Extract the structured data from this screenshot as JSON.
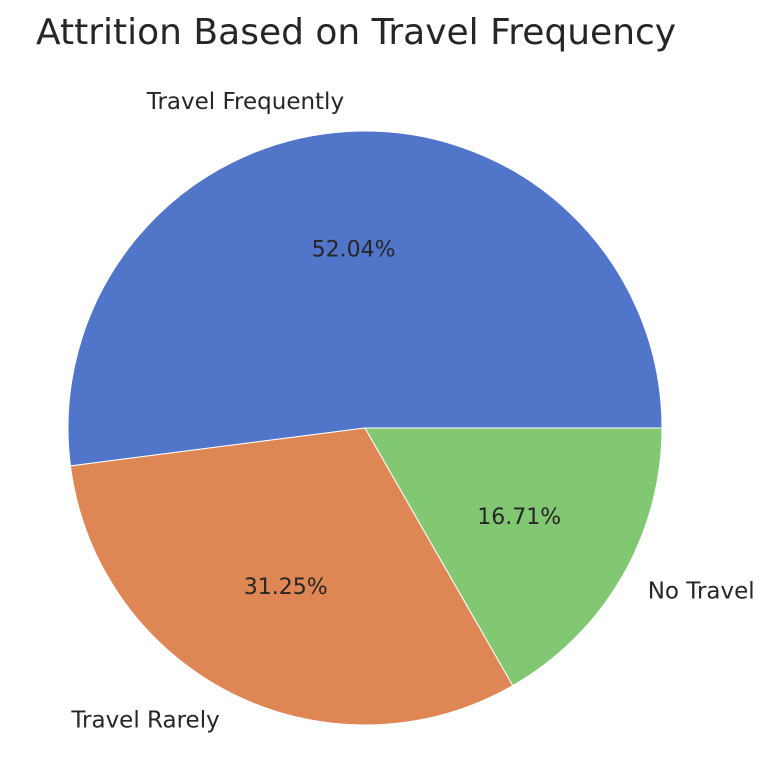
{
  "chart_data": {
    "type": "pie",
    "title": "Attrition Based on Travel Frequency",
    "categories": [
      "Travel Frequently",
      "Travel Rarely",
      "No Travel"
    ],
    "values": [
      52.04,
      31.25,
      16.71
    ],
    "value_labels": [
      "52.04%",
      "31.25%",
      "16.71%"
    ],
    "colors": [
      "#5175c9",
      "#de8654",
      "#82c771"
    ],
    "start_angle_deg": 0,
    "direction": "counterclockwise",
    "legend": "none"
  }
}
